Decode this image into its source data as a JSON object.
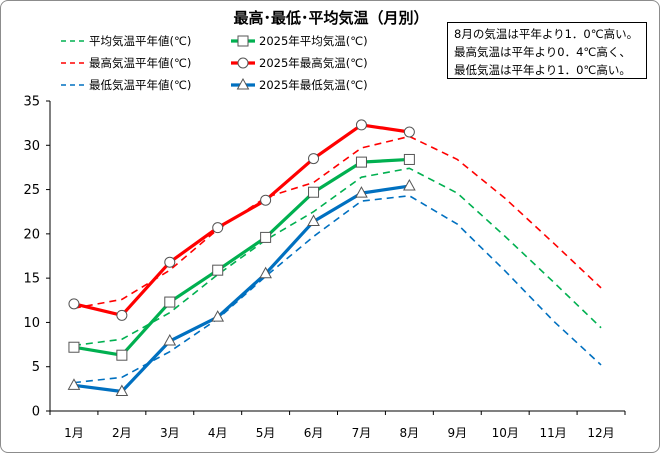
{
  "chart_data": {
    "type": "line",
    "title": "最高･最低･平均気温（月別）",
    "categories": [
      "1月",
      "2月",
      "3月",
      "4月",
      "5月",
      "6月",
      "7月",
      "8月",
      "9月",
      "10月",
      "11月",
      "12月"
    ],
    "ylim": [
      0,
      35
    ],
    "yticks": [
      0,
      5,
      10,
      15,
      20,
      25,
      30,
      35
    ],
    "grid": false,
    "legend_position": "top",
    "series": [
      {
        "name": "平均気温平年値(℃)",
        "color": "#00b050",
        "style": "dashed",
        "marker": "none",
        "values": [
          7.4,
          8.1,
          11.1,
          15.4,
          19.3,
          22.5,
          26.4,
          27.4,
          24.6,
          19.7,
          14.6,
          9.4
        ]
      },
      {
        "name": "2025年平均気温(℃)",
        "color": "#00b050",
        "style": "solid",
        "marker": "square",
        "values": [
          7.2,
          6.3,
          12.3,
          15.9,
          19.6,
          24.7,
          28.1,
          28.4,
          null,
          null,
          null,
          null
        ]
      },
      {
        "name": "最高気温平年値(℃)",
        "color": "#ff0000",
        "style": "dashed",
        "marker": "none",
        "values": [
          11.6,
          12.6,
          15.9,
          20.5,
          24.1,
          25.8,
          29.7,
          31.0,
          28.4,
          24.0,
          19.0,
          13.9
        ]
      },
      {
        "name": "2025年最高気温(℃)",
        "color": "#ff0000",
        "style": "solid",
        "marker": "circle",
        "values": [
          12.1,
          10.8,
          16.8,
          20.7,
          23.8,
          28.5,
          32.3,
          31.5,
          null,
          null,
          null,
          null
        ]
      },
      {
        "name": "最低気温平年値(℃)",
        "color": "#0070c0",
        "style": "dashed",
        "marker": "none",
        "values": [
          3.2,
          3.8,
          6.7,
          10.4,
          15.2,
          19.7,
          23.7,
          24.3,
          21.1,
          15.8,
          10.2,
          5.2
        ]
      },
      {
        "name": "2025年最低気温(℃)",
        "color": "#0070c0",
        "style": "solid",
        "marker": "triangle",
        "values": [
          2.9,
          2.2,
          7.9,
          10.6,
          15.5,
          21.4,
          24.6,
          25.4,
          null,
          null,
          null,
          null
        ]
      }
    ],
    "note": [
      "8月の気温は平年より1．0℃高い。",
      "最高気温は平年より0．4℃高く、",
      "最低気温は平年より1．0℃高い。"
    ]
  }
}
